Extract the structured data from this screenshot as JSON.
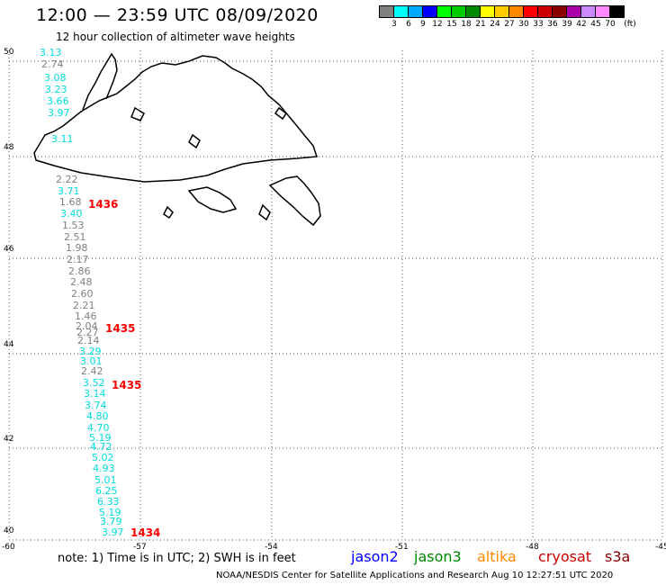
{
  "header": {
    "title": "12:00 — 23:59 UTC 08/09/2020",
    "subtitle": "12 hour collection of altimeter wave heights"
  },
  "color_scale": {
    "colors": [
      "#808080",
      "#00ffff",
      "#00aaff",
      "#0000ff",
      "#00ff00",
      "#00cc00",
      "#008800",
      "#ffff00",
      "#ffcc00",
      "#ff8800",
      "#ff0000",
      "#cc0000",
      "#880000",
      "#aa00aa",
      "#cc88ff",
      "#ff88ff",
      "#000000"
    ],
    "labels": [
      "3",
      "6",
      "9",
      "12",
      "15",
      "18",
      "21",
      "24",
      "27",
      "30",
      "33",
      "36",
      "39",
      "42",
      "45",
      "70"
    ],
    "unit": "(ft)"
  },
  "axes": {
    "lat_labels": [
      "50",
      "48",
      "46",
      "44",
      "42",
      "40"
    ],
    "lon_labels": [
      "-60",
      "-57",
      "-54",
      "-51",
      "-48",
      "-45"
    ]
  },
  "tracks": [
    {
      "satellite": "jason2",
      "color": "#00dddd",
      "time": "",
      "values": [
        "3.13",
        "3.08",
        "3.23",
        "3.66",
        "3.97",
        "3.11"
      ]
    },
    {
      "satellite": "unlabeled",
      "color": "#808080",
      "time": "",
      "values": [
        "2.74",
        "2.22",
        "1.68",
        "1.53",
        "2.51",
        "1.98",
        "2.17",
        "2.86",
        "2.48",
        "2.60",
        "2.21",
        "1.46",
        "2.04",
        "2.27",
        "2.14",
        "2.42"
      ]
    },
    {
      "satellite": "cyan-track",
      "color": "#00dddd",
      "time": "",
      "values": [
        "3.71",
        "3.40",
        "3.29",
        "3.01",
        "3.52",
        "3.14",
        "3.74",
        "4.80",
        "4.70",
        "5.19",
        "4.72",
        "5.02",
        "4.93",
        "5.01",
        "6.25",
        "6.33",
        "5.19",
        "3.79",
        "3.97"
      ]
    }
  ],
  "times": [
    "1436",
    "1435",
    "1435",
    "1434"
  ],
  "note": "note: 1) Time is in UTC; 2) SWH is in feet",
  "satellites": [
    {
      "name": "jason2",
      "color": "#0000ff"
    },
    {
      "name": "jason3",
      "color": "#008800"
    },
    {
      "name": "altika",
      "color": "#ff8800"
    },
    {
      "name": "cryosat",
      "color": "#cc0000"
    },
    {
      "name": "s3a",
      "color": "#880000"
    }
  ],
  "credit": "NOAA/NESDIS Center for Satellite Applications and Research   Aug 10 12:27:51 UTC 2020"
}
